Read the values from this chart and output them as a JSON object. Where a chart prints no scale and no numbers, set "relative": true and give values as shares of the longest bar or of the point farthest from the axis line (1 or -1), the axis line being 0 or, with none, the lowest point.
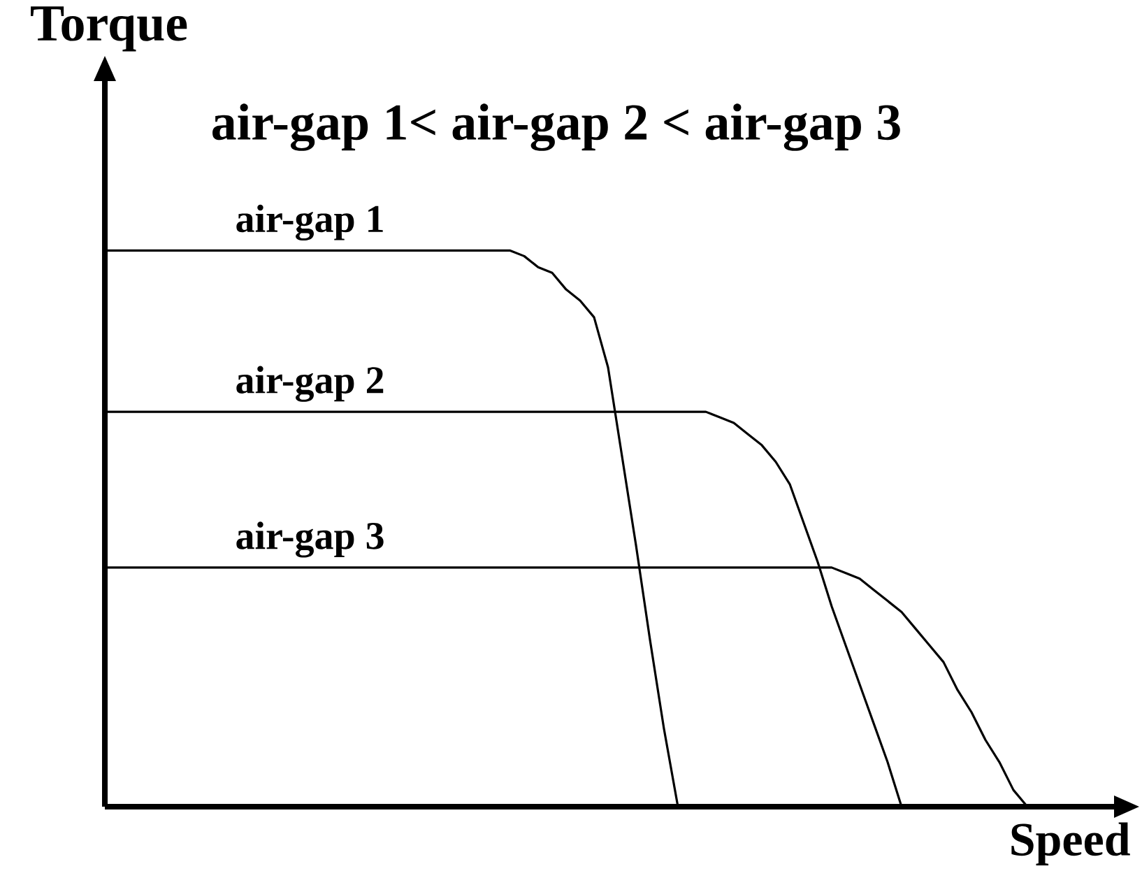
{
  "chart_data": {
    "type": "line",
    "title": "air-gap 1< air-gap 2 < air-gap 3",
    "xlabel": "Speed",
    "ylabel": "Torque",
    "relative": true,
    "categories": [
      null,
      null,
      null,
      null,
      null,
      null,
      null,
      null,
      null,
      null,
      null,
      null,
      null,
      null,
      null,
      null,
      null,
      null,
      null,
      null,
      null,
      null,
      null,
      null,
      null,
      null,
      null,
      null,
      null,
      null,
      null,
      null,
      null,
      null,
      null,
      null,
      null,
      null,
      null,
      null,
      null,
      null,
      null,
      null,
      null,
      null,
      null,
      null,
      null,
      null,
      null,
      null,
      null,
      null,
      null,
      null,
      null,
      null,
      null,
      null,
      null,
      null,
      null,
      null,
      null,
      null,
      null
    ],
    "series": [
      {
        "name": "air-gap 1",
        "color": "#000000",
        "values": [
          1,
          1,
          1,
          1,
          1,
          1,
          1,
          1,
          1,
          1,
          1,
          1,
          1,
          1,
          1,
          1,
          1,
          1,
          1,
          1,
          1,
          1,
          1,
          1,
          1,
          1,
          1,
          1,
          1,
          1,
          0.99,
          0.97,
          0.96,
          0.93,
          0.91,
          0.88,
          0.79,
          0.63,
          0.47,
          0.3,
          0.14,
          0,
          null,
          null,
          null,
          null,
          null,
          null,
          null,
          null,
          null,
          null,
          null,
          null,
          null,
          null,
          null,
          null,
          null,
          null,
          null,
          null,
          null,
          null,
          null,
          null,
          null
        ]
      },
      {
        "name": "air-gap 2",
        "color": "#000000",
        "values": [
          0.71,
          0.71,
          0.71,
          0.71,
          0.71,
          0.71,
          0.71,
          0.71,
          0.71,
          0.71,
          0.71,
          0.71,
          0.71,
          0.71,
          0.71,
          0.71,
          0.71,
          0.71,
          0.71,
          0.71,
          0.71,
          0.71,
          0.71,
          0.71,
          0.71,
          0.71,
          0.71,
          0.71,
          0.71,
          0.71,
          0.71,
          0.71,
          0.71,
          0.71,
          0.71,
          0.71,
          0.71,
          0.71,
          0.71,
          0.71,
          0.71,
          0.71,
          0.71,
          0.71,
          0.7,
          0.69,
          0.67,
          0.65,
          0.62,
          0.58,
          0.51,
          0.44,
          0.36,
          0.29,
          0.22,
          0.15,
          0.08,
          0,
          null,
          null,
          null,
          null,
          null,
          null,
          null,
          null,
          null
        ]
      },
      {
        "name": "air-gap 3",
        "color": "#000000",
        "values": [
          0.43,
          0.43,
          0.43,
          0.43,
          0.43,
          0.43,
          0.43,
          0.43,
          0.43,
          0.43,
          0.43,
          0.43,
          0.43,
          0.43,
          0.43,
          0.43,
          0.43,
          0.43,
          0.43,
          0.43,
          0.43,
          0.43,
          0.43,
          0.43,
          0.43,
          0.43,
          0.43,
          0.43,
          0.43,
          0.43,
          0.43,
          0.43,
          0.43,
          0.43,
          0.43,
          0.43,
          0.43,
          0.43,
          0.43,
          0.43,
          0.43,
          0.43,
          0.43,
          0.43,
          0.43,
          0.43,
          0.43,
          0.43,
          0.43,
          0.43,
          0.43,
          0.43,
          0.43,
          0.42,
          0.41,
          0.39,
          0.37,
          0.35,
          0.32,
          0.29,
          0.26,
          0.21,
          0.17,
          0.12,
          0.08,
          0.03,
          0
        ]
      }
    ]
  }
}
